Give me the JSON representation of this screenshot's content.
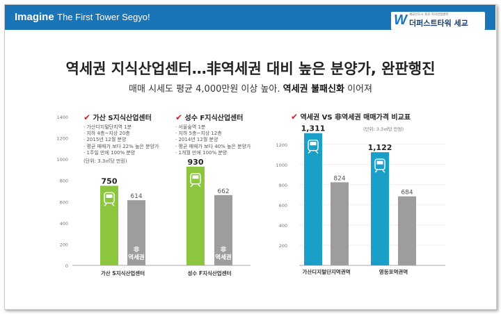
{
  "header": {
    "brand_bold": "Imagine",
    "brand_tag": "The First Tower Segyo!",
    "logo_mark": "W",
    "logo_sub": "세교신도시 최초 지식산업센터",
    "logo_name": "더퍼스트타워 세교"
  },
  "headline": {
    "title": "역세권 지식산업센터…非역세권 대비 높은 분양가, 완판행진",
    "subtitle_plain": "매매 시세도 평균 4,000만원 이상 높아.",
    "subtitle_bold": "역세권 불패신화",
    "subtitle_tail": "이어져"
  },
  "left_panel": {
    "box1": {
      "check": "✔",
      "title": "가산 S지식산업센터",
      "lines": [
        "가산디지털단지역 1분",
        "지하 4층~지상 20층",
        "2015년 12월 분양",
        "평균 매매가 보다 22% 높은 분양가",
        "1주일 만에 100% 분양"
      ],
      "unit": "(단위: 3.3㎡당 만원)"
    },
    "box2": {
      "check": "✔",
      "title": "성수 F지식산업센터",
      "lines": [
        "서울숲역 1분",
        "지하 5층~지상 12층",
        "2014년 12월 분양",
        "평균 매매가 보다 40% 높은 분양가",
        "1개월 만에 100% 분양"
      ]
    }
  },
  "right_panel": {
    "check": "✔",
    "title": "역세권 VS 非역세권 매매가격 비교표",
    "unit": "(단위: 3.3㎡당 만원)"
  },
  "chart_data": [
    {
      "type": "bar",
      "yticks": [
        0,
        200,
        400,
        600,
        800,
        1000,
        1200,
        1400
      ],
      "ylim": [
        0,
        1400
      ],
      "groups": [
        {
          "label": "가산 S지식산업센터",
          "bars": [
            {
              "label": "",
              "value": 750,
              "value_label": "750",
              "color": "#8cc63f",
              "icon": "subway-icon"
            },
            {
              "label": "非\n역세권",
              "value": 614,
              "value_label": "614",
              "color": "#9d9d9d"
            }
          ]
        },
        {
          "label": "성수 F지식산업센터",
          "bars": [
            {
              "label": "",
              "value": 930,
              "value_label": "930",
              "color": "#8cc63f",
              "icon": "subway-icon"
            },
            {
              "label": "非\n역세권",
              "value": 662,
              "value_label": "662",
              "color": "#9d9d9d"
            }
          ]
        }
      ]
    },
    {
      "type": "bar",
      "yticks": [
        200,
        400,
        600,
        800,
        1000,
        1200
      ],
      "ylim": [
        0,
        1350
      ],
      "groups": [
        {
          "label": "가산디지털단지역권역",
          "bars": [
            {
              "label": "",
              "value": 1311,
              "value_label": "1,311",
              "color": "#1aa0c8",
              "icon": "subway-icon"
            },
            {
              "label": "",
              "value": 824,
              "value_label": "824",
              "color": "#9d9d9d"
            }
          ]
        },
        {
          "label": "영등포역권역",
          "bars": [
            {
              "label": "",
              "value": 1122,
              "value_label": "1,122",
              "color": "#1aa0c8",
              "icon": "subway-icon"
            },
            {
              "label": "",
              "value": 684,
              "value_label": "684",
              "color": "#9d9d9d"
            }
          ]
        }
      ]
    }
  ]
}
